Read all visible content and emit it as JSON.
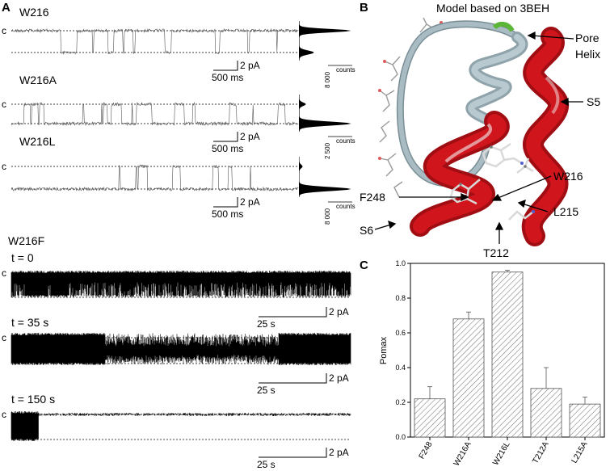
{
  "panels": {
    "a": "A",
    "b": "B",
    "c": "C"
  },
  "traces": [
    {
      "title": "W216",
      "closed_label": "c",
      "scale_pa": "2 pA",
      "scale_time": "500 ms",
      "hist_count": "8 000",
      "hist_label": "counts"
    },
    {
      "title": "W216A",
      "closed_label": "c",
      "scale_pa": "2 pA",
      "scale_time": "500 ms",
      "hist_count": "2 500",
      "hist_label": "counts"
    },
    {
      "title": "W216L",
      "closed_label": "c",
      "scale_pa": "2 pA",
      "scale_time": "500 ms",
      "hist_count": "8 000",
      "hist_label": "counts"
    }
  ],
  "w216f": {
    "title": "W216F",
    "rows": [
      {
        "time_label": "t = 0",
        "closed_label": "c",
        "scale_pa": "2 pA",
        "scale_time": "25 s"
      },
      {
        "time_label": "t = 35 s",
        "closed_label": "c",
        "scale_pa": "2 pA",
        "scale_time": "25 s"
      },
      {
        "time_label": "t = 150 s",
        "closed_label": "c",
        "scale_pa": "2 pA",
        "scale_time": "25 s"
      }
    ]
  },
  "model": {
    "title": "Model based on 3BEH",
    "labels": {
      "pore_helix": [
        "Pore",
        "Helix"
      ],
      "s5": "S5",
      "w216": "W216",
      "f248": "F248",
      "l215": "L215",
      "s6": "S6",
      "t212": "T212"
    },
    "colors": {
      "helix_red": "#d0151c",
      "loop_gray": "#9fb3bb",
      "green": "#5bb537"
    }
  },
  "chart_data": {
    "type": "bar",
    "categories": [
      "F248",
      "W216A",
      "W216L",
      "T212A",
      "L215A"
    ],
    "values": [
      0.22,
      0.68,
      0.95,
      0.28,
      0.19
    ],
    "errors": [
      0.07,
      0.04,
      0.01,
      0.12,
      0.04
    ],
    "ylabel": "Pomax",
    "ylim": [
      0,
      1.0
    ],
    "yticks": [
      "0.0",
      "0.2",
      "0.4",
      "0.6",
      "0.8",
      "1.0"
    ],
    "bar_fill": "hatched"
  }
}
